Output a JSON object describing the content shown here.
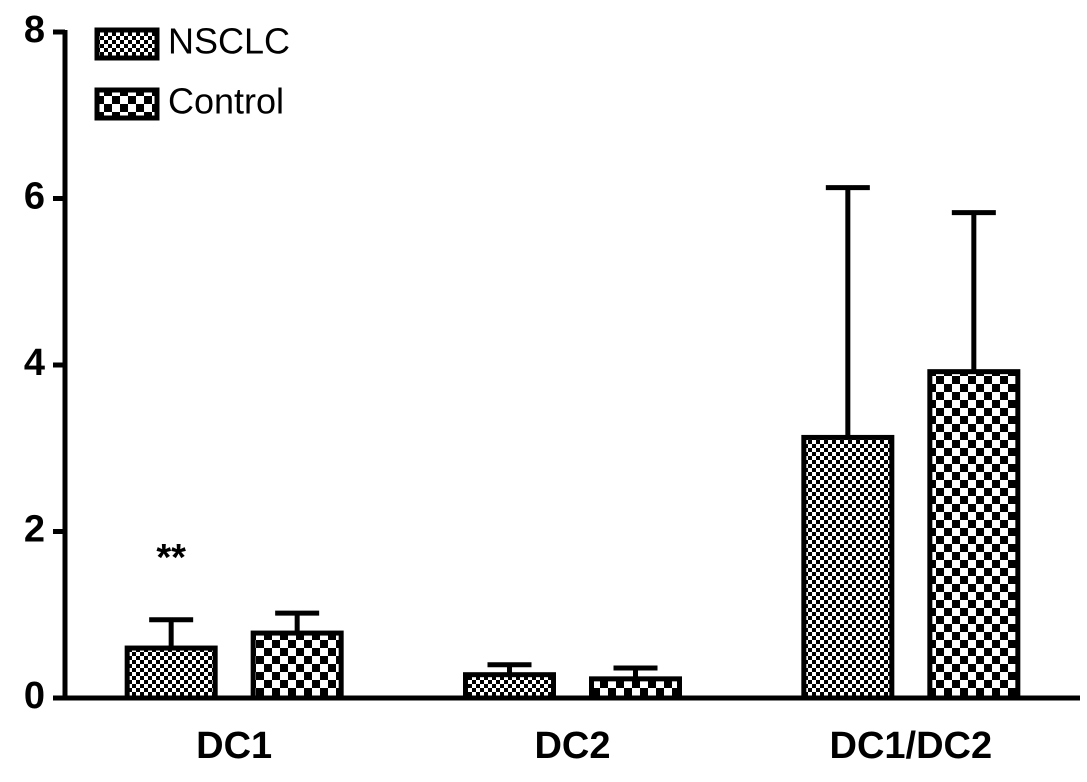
{
  "chart_data": {
    "type": "bar",
    "categories": [
      "DC1",
      "DC2",
      "DC1/DC2"
    ],
    "series": [
      {
        "name": "NSCLC",
        "color": "#000000",
        "pattern": "fine-checker",
        "values": [
          0.6,
          0.28,
          3.13
        ],
        "errors": [
          0.34,
          0.12,
          3.0
        ]
      },
      {
        "name": "Control",
        "color": "#000000",
        "pattern": "coarse-checker",
        "values": [
          0.78,
          0.23,
          3.92
        ],
        "errors": [
          0.24,
          0.13,
          1.91
        ]
      }
    ],
    "ylim": [
      0,
      8
    ],
    "yticks": [
      0,
      2,
      4,
      6,
      8
    ],
    "grid": false,
    "legend": "top-left",
    "annotations": [
      {
        "text": "**",
        "category": "DC1",
        "series": "NSCLC"
      }
    ]
  }
}
